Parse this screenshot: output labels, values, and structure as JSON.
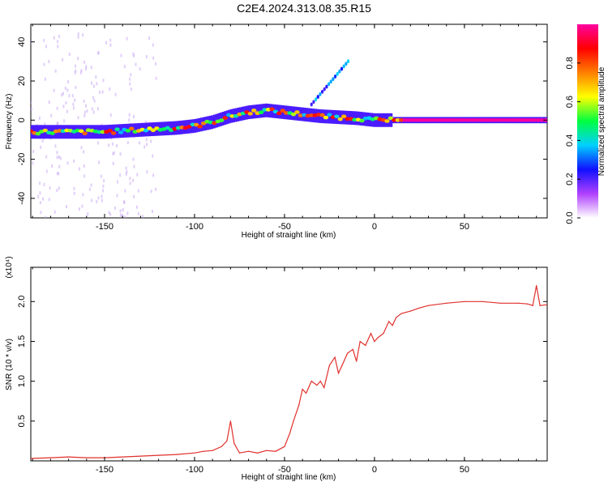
{
  "figure": {
    "title": "C2E4.2024.313.08.35.R15"
  },
  "chart_data": [
    {
      "type": "heatmap",
      "xlabel": "Height of straight line (km)",
      "ylabel": "Frequency (Hz)",
      "xlim": [
        -191,
        96
      ],
      "ylim": [
        -50,
        49
      ],
      "xticks": [
        -150,
        -100,
        -50,
        0,
        50
      ],
      "yticks": [
        -40,
        -20,
        0,
        20,
        40
      ],
      "colorbar": {
        "label": "Normalized spectral amplitude",
        "range": [
          0,
          1
        ],
        "ticks": [
          0.0,
          0.2,
          0.4,
          0.6,
          0.8
        ],
        "colors": [
          "#ffffff",
          "#b040ff",
          "#1010ff",
          "#00d0ff",
          "#00ff40",
          "#ffff00",
          "#ff8000",
          "#ff0000",
          "#ff00a0"
        ]
      },
      "ridge": {
        "x": [
          -191,
          -170,
          -150,
          -130,
          -110,
          -100,
          -90,
          -80,
          -70,
          -60,
          -50,
          -40,
          -30,
          -20,
          -10,
          0,
          10,
          20,
          50,
          80,
          96
        ],
        "freq": [
          -6,
          -6,
          -6,
          -5,
          -4,
          -3,
          -1,
          2,
          4,
          5,
          4,
          3,
          2,
          1.5,
          1,
          0,
          0,
          0,
          0,
          0,
          0
        ]
      }
    },
    {
      "type": "line",
      "xlabel": "Height of straight line (km)",
      "ylabel": "SNR (10 * v/v)",
      "y_scale_label": "(x10⁴)",
      "xlim": [
        -191,
        96
      ],
      "ylim": [
        0,
        2.43
      ],
      "xticks": [
        -150,
        -100,
        -50,
        0,
        50
      ],
      "yticks": [
        0.5,
        1.0,
        1.5,
        2.0
      ],
      "color": "#e0302c",
      "series": [
        {
          "x": [
            -191,
            -180,
            -170,
            -160,
            -150,
            -140,
            -130,
            -120,
            -110,
            -100,
            -95,
            -90,
            -85,
            -82,
            -80,
            -78,
            -75,
            -70,
            -65,
            -60,
            -55,
            -50,
            -47,
            -45,
            -42,
            -40,
            -38,
            -35,
            -32,
            -30,
            -28,
            -25,
            -22,
            -20,
            -18,
            -15,
            -12,
            -10,
            -8,
            -5,
            -2,
            0,
            2,
            5,
            8,
            10,
            12,
            15,
            20,
            25,
            30,
            40,
            50,
            60,
            70,
            80,
            85,
            88,
            90,
            92,
            96
          ],
          "values": [
            0.03,
            0.04,
            0.05,
            0.04,
            0.04,
            0.05,
            0.06,
            0.07,
            0.08,
            0.1,
            0.12,
            0.13,
            0.18,
            0.25,
            0.5,
            0.22,
            0.1,
            0.12,
            0.1,
            0.13,
            0.12,
            0.18,
            0.35,
            0.5,
            0.7,
            0.9,
            0.85,
            1.0,
            0.95,
            1.0,
            0.92,
            1.2,
            1.3,
            1.1,
            1.2,
            1.35,
            1.4,
            1.25,
            1.5,
            1.45,
            1.6,
            1.5,
            1.55,
            1.6,
            1.75,
            1.7,
            1.8,
            1.85,
            1.88,
            1.92,
            1.95,
            1.98,
            2.0,
            2.0,
            1.98,
            1.98,
            1.97,
            1.95,
            2.2,
            1.95,
            1.96
          ]
        }
      ]
    }
  ]
}
